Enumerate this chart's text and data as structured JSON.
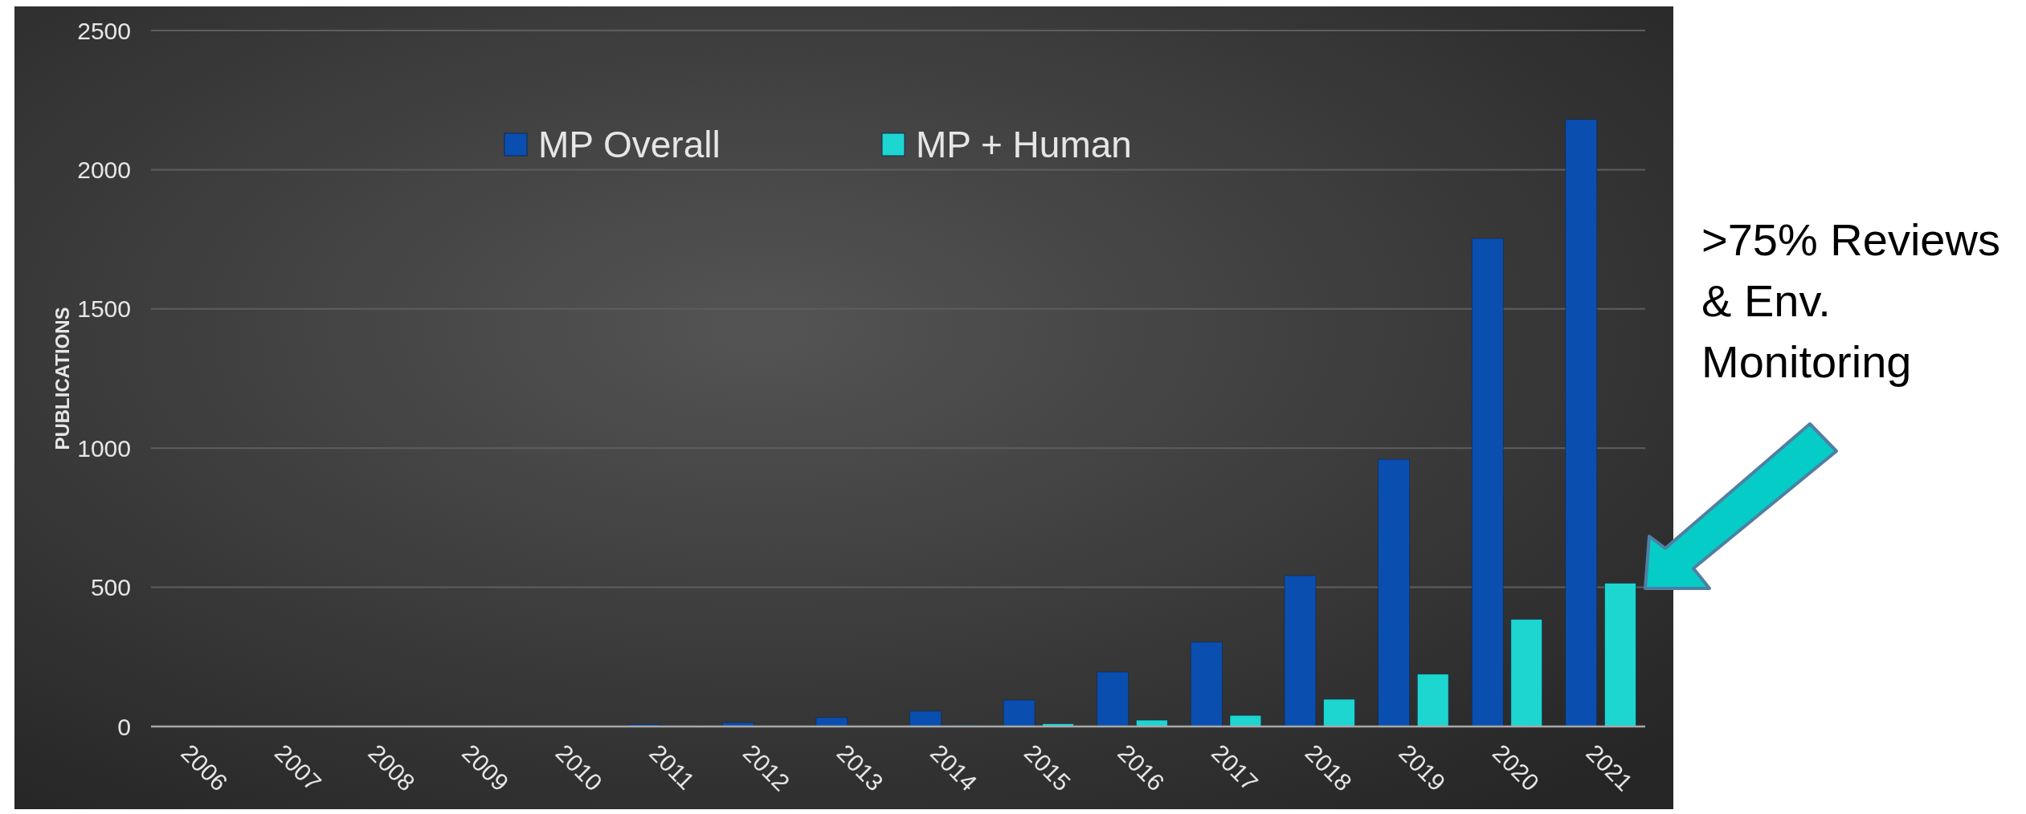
{
  "chart_data": {
    "type": "bar",
    "ylabel": "PUBLICATIONS",
    "categories": [
      "2006",
      "2007",
      "2008",
      "2009",
      "2010",
      "2011",
      "2012",
      "2013",
      "2014",
      "2015",
      "2016",
      "2017",
      "2018",
      "2019",
      "2020",
      "2021"
    ],
    "series": [
      {
        "name": "MP Overall",
        "color": "#0a4fb0",
        "values": [
          0,
          1,
          1,
          1,
          2,
          7,
          14,
          32,
          55,
          95,
          196,
          303,
          542,
          960,
          1753,
          2180
        ]
      },
      {
        "name": "MP + Human",
        "color": "#1dd6cf",
        "values": [
          0,
          0,
          0,
          0,
          0,
          0,
          0,
          0,
          4,
          10,
          23,
          40,
          98,
          188,
          385,
          515
        ]
      }
    ],
    "ylim": [
      0,
      2500
    ],
    "yticks": [
      0,
      500,
      1000,
      1500,
      2000,
      2500
    ],
    "grid": "y",
    "legend": "top",
    "annotations": [
      ">75% Reviews & Env. Monitoring"
    ]
  }
}
